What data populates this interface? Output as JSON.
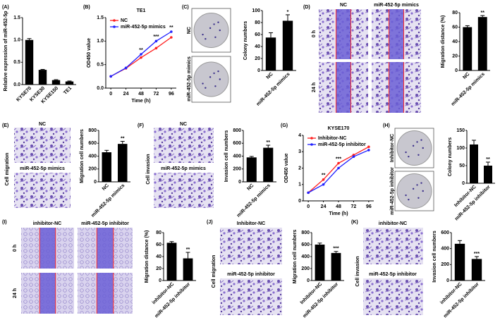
{
  "chart_data": [
    {
      "label": "(A)",
      "type": "bar",
      "categories": [
        "KYSE70",
        "KYSE30",
        "KYSE150",
        "TE1"
      ],
      "values": [
        1.0,
        0.33,
        0.1,
        0.07
      ],
      "errors": [
        0.03,
        0.01,
        0.01,
        0.01
      ],
      "ylabel": "Relative expression of miR-452-5p",
      "ylim": [
        0,
        1.5
      ],
      "yticks": [
        {
          "value": 0,
          "label": "0.0"
        },
        {
          "value": 0.5,
          "label": "0.5"
        },
        {
          "value": 1,
          "label": "1.0"
        },
        {
          "value": 1.5,
          "label": "1.5"
        }
      ],
      "color": "#000000"
    },
    {
      "label": "(B)",
      "type": "line",
      "title": "TE1",
      "x": [
        0,
        24,
        48,
        72,
        96
      ],
      "xlim": [
        -8,
        104
      ],
      "xticks": [
        0,
        24,
        48,
        72,
        96
      ],
      "xlabel": "Time (h)",
      "ylabel": "OD450 value",
      "ylim": [
        0,
        1.5
      ],
      "yticks": [
        {
          "value": 0,
          "label": "0.0"
        },
        {
          "value": 0.5,
          "label": "0.5"
        },
        {
          "value": 1,
          "label": "1.0"
        },
        {
          "value": 1.5,
          "label": "1.5"
        }
      ],
      "series": [
        {
          "name": "NC",
          "color": "#ff2020",
          "values": [
            0.25,
            0.42,
            0.65,
            0.85,
            1.08
          ]
        },
        {
          "name": "miR-452-5p mimics",
          "color": "#2020ff",
          "values": [
            0.25,
            0.43,
            0.72,
            1.0,
            1.2
          ]
        }
      ],
      "annotations": [
        {
          "x": 48,
          "text": "**"
        },
        {
          "x": 72,
          "text": "***"
        },
        {
          "x": 96,
          "text": "**"
        }
      ]
    },
    {
      "label": "(C)",
      "type": "bar",
      "categories": [
        "NC",
        "miR-452-5p mimics"
      ],
      "values": [
        55,
        83
      ],
      "errors": [
        8,
        10
      ],
      "ylabel": "Colony numbers",
      "ylim": [
        0,
        100
      ],
      "yticks": [
        0,
        20,
        40,
        60,
        80,
        100
      ],
      "color": "#000000",
      "significance": "*"
    },
    {
      "label": "(D)",
      "type": "bar",
      "categories": [
        "NC",
        "miR-452-5p mimics"
      ],
      "values": [
        60,
        74
      ],
      "errors": [
        2,
        2
      ],
      "ylabel": "Migration distance (%)",
      "ylim": [
        0,
        80
      ],
      "yticks": [
        0,
        20,
        40,
        60,
        80
      ],
      "color": "#000000",
      "significance": "**"
    },
    {
      "label": "(E)",
      "type": "bar",
      "categories": [
        "NC",
        "miR-452-5p mimics"
      ],
      "values": [
        460,
        590
      ],
      "errors": [
        30,
        40
      ],
      "ylabel": "Migration cell numbers",
      "ylim": [
        0,
        800
      ],
      "yticks": [
        0,
        200,
        400,
        600,
        800
      ],
      "color": "#000000",
      "significance": "**"
    },
    {
      "label": "(F)",
      "type": "bar",
      "categories": [
        "NC",
        "miR-452-5p mimics"
      ],
      "values": [
        380,
        530
      ],
      "errors": [
        15,
        40
      ],
      "ylabel": "Invasion cell numbers",
      "ylim": [
        0,
        800
      ],
      "yticks": [
        0,
        200,
        400,
        600,
        800
      ],
      "color": "#000000",
      "significance": "**"
    },
    {
      "label": "(G)",
      "type": "line",
      "title": "KYSE170",
      "x": [
        0,
        24,
        48,
        72,
        96
      ],
      "xlim": [
        -8,
        104
      ],
      "xticks": [
        0,
        24,
        48,
        72,
        96
      ],
      "xlabel": "Time (h)",
      "ylabel": "OD450 value",
      "ylim": [
        0,
        4
      ],
      "yticks": [
        0,
        1,
        2,
        3,
        4
      ],
      "series": [
        {
          "name": "Inhibitor-NC",
          "color": "#ff2020",
          "values": [
            0.5,
            1.3,
            2.3,
            2.8,
            3.3
          ]
        },
        {
          "name": "miR-452-5p inhibitor",
          "color": "#2020ff",
          "values": [
            0.5,
            1.0,
            2.0,
            2.7,
            3.1
          ]
        }
      ],
      "annotations": [
        {
          "x": 24,
          "text": "**"
        },
        {
          "x": 48,
          "text": "***"
        }
      ]
    },
    {
      "label": "(H)",
      "type": "bar",
      "categories": [
        "Inhibitor-NC",
        "miR-452-5p inhibitor"
      ],
      "values": [
        110,
        50
      ],
      "errors": [
        12,
        10
      ],
      "ylabel": "Colony numbers",
      "ylim": [
        0,
        150
      ],
      "yticks": [
        0,
        50,
        100,
        150
      ],
      "color": "#000000",
      "significance": "**"
    },
    {
      "label": "(I)",
      "type": "bar",
      "categories": [
        "inhibitor-NC",
        "miR-452-5p inhibitor"
      ],
      "values": [
        63,
        37
      ],
      "errors": [
        2,
        10
      ],
      "ylabel": "Migration distance (%)",
      "ylim": [
        0,
        80
      ],
      "yticks": [
        0,
        20,
        40,
        60,
        80
      ],
      "color": "#000000",
      "significance": "**"
    },
    {
      "label": "(J)",
      "type": "bar",
      "categories": [
        "Inhibitor-NC",
        "miR-452-5p inhibitor"
      ],
      "values": [
        600,
        460
      ],
      "errors": [
        25,
        25
      ],
      "ylabel": "Migration cell numbers",
      "ylim": [
        0,
        800
      ],
      "yticks": [
        0,
        200,
        400,
        600,
        800
      ],
      "color": "#000000",
      "significance": "***"
    },
    {
      "label": "(K)",
      "type": "bar",
      "categories": [
        "inhibitor-NC",
        "miR-452-5p inhibitor"
      ],
      "values": [
        460,
        270
      ],
      "errors": [
        40,
        30
      ],
      "ylabel": "Invasion cell numbers",
      "ylim": [
        0,
        600
      ],
      "yticks": [
        0,
        200,
        400,
        600
      ],
      "color": "#000000",
      "significance": "***"
    }
  ],
  "images": [
    {
      "labels": [
        "NC",
        "miR-452-5p mimics"
      ]
    },
    {
      "labels": [
        "NC",
        "miR-452-5p mimics",
        "0 h",
        "24 h"
      ]
    },
    {
      "labels": [
        "Cell migration",
        "NC",
        "miR-452-5p mimics"
      ]
    },
    {
      "labels": [
        "Cell invasion",
        "NC",
        "miR-452-5p mimics"
      ]
    },
    {
      "labels": [
        "Inhibitor-NC",
        "miR-452-5p inhibitor"
      ]
    },
    {
      "labels": [
        "inhibitor-NC",
        "miR-452-5p inhibitor",
        "0 h",
        "24 h"
      ]
    },
    {
      "labels": [
        "Cell migration",
        "Inhibitor-NC",
        "miR-452-5p inhibitor"
      ]
    },
    {
      "labels": [
        "Cell invasion",
        "inhibitor-NC",
        "miR-452-5p inhibitor"
      ]
    }
  ]
}
